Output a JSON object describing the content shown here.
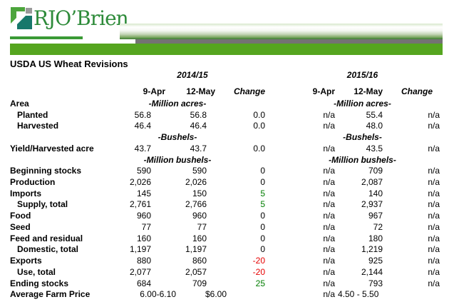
{
  "logo": {
    "brand": "RJO’Brien"
  },
  "title": "USDA US Wheat Revisions",
  "colors": {
    "accent_green": "#55A51F",
    "bar_gray": "#737373",
    "brand_text_green": "#2E8B3A",
    "logo_teal": "#17786B",
    "logo_green": "#4CA53C",
    "logo_gray": "#9A9A9A",
    "positive_change": "#007D00",
    "negative_change": "#E60000"
  },
  "table": {
    "groups": [
      {
        "year": "2014/15",
        "cols": [
          "9-Apr",
          "12-May",
          "Change"
        ]
      },
      {
        "year": "2015/16",
        "cols": [
          "9-Apr",
          "12-May",
          "Change"
        ]
      }
    ],
    "rows": [
      {
        "type": "units",
        "label": "Area",
        "indent": false,
        "unit1": "-Million acres-",
        "unit2": "-Million acres-"
      },
      {
        "type": "data",
        "label": "Planted",
        "indent": true,
        "g1": [
          "56.8",
          "56.8",
          "0.0"
        ],
        "g2": [
          "n/a",
          "55.4",
          "n/a"
        ],
        "change_color": null
      },
      {
        "type": "data",
        "label": "Harvested",
        "indent": true,
        "g1": [
          "46.4",
          "46.4",
          "0.0"
        ],
        "g2": [
          "n/a",
          "48.0",
          "n/a"
        ],
        "change_color": null
      },
      {
        "type": "units",
        "label": "",
        "indent": false,
        "unit1": "-Bushels-",
        "unit2": "-Bushels-"
      },
      {
        "type": "data",
        "label": "Yield/Harvested acre",
        "indent": false,
        "g1": [
          "43.7",
          "43.7",
          "0.0"
        ],
        "g2": [
          "n/a",
          "43.5",
          "n/a"
        ],
        "change_color": null
      },
      {
        "type": "units",
        "label": "",
        "indent": false,
        "unit1": "-Million bushels-",
        "unit2": "-Million bushels-"
      },
      {
        "type": "data",
        "label": "Beginning stocks",
        "indent": false,
        "g1": [
          "590",
          "590",
          "0"
        ],
        "g2": [
          "n/a",
          "709",
          "n/a"
        ],
        "change_color": null
      },
      {
        "type": "data",
        "label": "Production",
        "indent": false,
        "g1": [
          "2,026",
          "2,026",
          "0"
        ],
        "g2": [
          "n/a",
          "2,087",
          "n/a"
        ],
        "change_color": null
      },
      {
        "type": "data",
        "label": "Imports",
        "indent": false,
        "g1": [
          "145",
          "150",
          "5"
        ],
        "g2": [
          "n/a",
          "140",
          "n/a"
        ],
        "change_color": "pos"
      },
      {
        "type": "data",
        "label": "Supply, total",
        "indent": true,
        "g1": [
          "2,761",
          "2,766",
          "5"
        ],
        "g2": [
          "n/a",
          "2,937",
          "n/a"
        ],
        "change_color": "pos"
      },
      {
        "type": "data",
        "label": "Food",
        "indent": false,
        "g1": [
          "960",
          "960",
          "0"
        ],
        "g2": [
          "n/a",
          "967",
          "n/a"
        ],
        "change_color": null
      },
      {
        "type": "data",
        "label": "Seed",
        "indent": false,
        "g1": [
          "77",
          "77",
          "0"
        ],
        "g2": [
          "n/a",
          "72",
          "n/a"
        ],
        "change_color": null
      },
      {
        "type": "data",
        "label": "Feed and residual",
        "indent": false,
        "g1": [
          "160",
          "160",
          "0"
        ],
        "g2": [
          "n/a",
          "180",
          "n/a"
        ],
        "change_color": null
      },
      {
        "type": "data",
        "label": "Domestic, total",
        "indent": true,
        "g1": [
          "1,197",
          "1,197",
          "0"
        ],
        "g2": [
          "n/a",
          "1,219",
          "n/a"
        ],
        "change_color": null
      },
      {
        "type": "data",
        "label": "Exports",
        "indent": false,
        "g1": [
          "880",
          "860",
          "-20"
        ],
        "g2": [
          "n/a",
          "925",
          "n/a"
        ],
        "change_color": "neg"
      },
      {
        "type": "data",
        "label": "Use, total",
        "indent": true,
        "g1": [
          "2,077",
          "2,057",
          "-20"
        ],
        "g2": [
          "n/a",
          "2,144",
          "n/a"
        ],
        "change_color": "neg"
      },
      {
        "type": "data",
        "label": "Ending stocks",
        "indent": false,
        "g1": [
          "684",
          "709",
          "25"
        ],
        "g2": [
          "n/a",
          "793",
          "n/a"
        ],
        "change_color": "pos"
      },
      {
        "type": "data",
        "label": "Average Farm Price",
        "indent": false,
        "special": "farm",
        "g1": [
          "6.00-6.10",
          "$6.00",
          ""
        ],
        "g2": [
          "n/a",
          "4.50 - 5.50",
          ""
        ],
        "change_color": null
      }
    ]
  }
}
